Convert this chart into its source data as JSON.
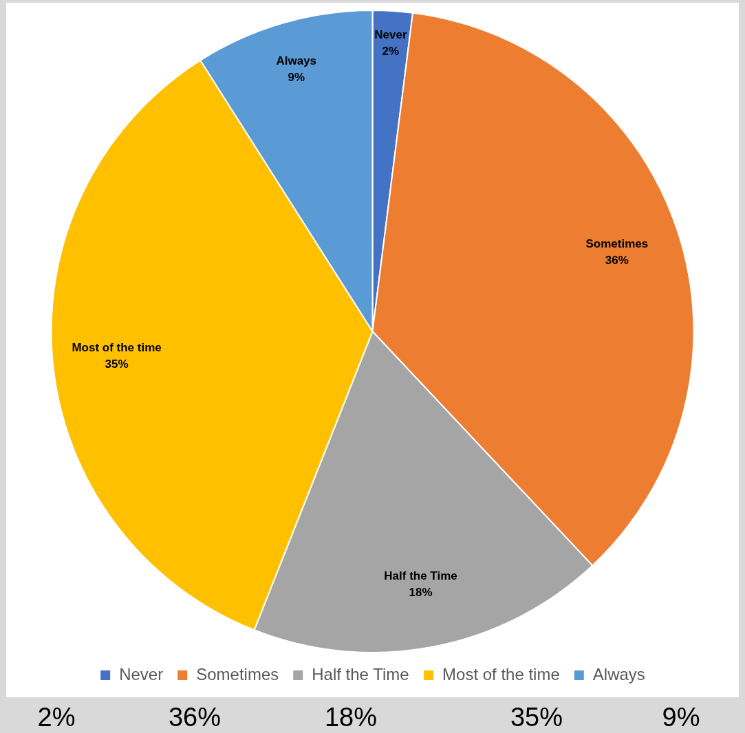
{
  "chart_data": {
    "type": "pie",
    "categories": [
      "Never",
      "Sometimes",
      "Half the Time",
      "Most of the time",
      "Always"
    ],
    "values": [
      2,
      36,
      18,
      35,
      9
    ],
    "value_labels": [
      "2%",
      "36%",
      "18%",
      "35%",
      "9%"
    ],
    "colors": [
      "#4472c4",
      "#ed7d31",
      "#a5a5a5",
      "#ffc000",
      "#5b9bd5"
    ],
    "legend": "bottom"
  }
}
